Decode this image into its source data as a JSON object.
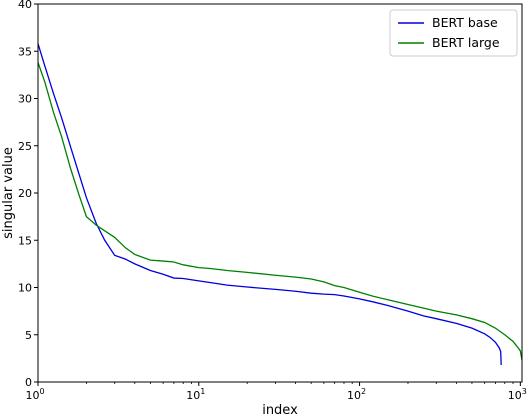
{
  "chart_data": {
    "type": "line",
    "title": "",
    "xlabel": "index",
    "ylabel": "singular value",
    "xscale": "log",
    "xlim": [
      1,
      1024
    ],
    "ylim": [
      0,
      40
    ],
    "xticks": [
      {
        "value": 1,
        "base": "10",
        "exp": "0"
      },
      {
        "value": 10,
        "base": "10",
        "exp": "1"
      },
      {
        "value": 100,
        "base": "10",
        "exp": "2"
      },
      {
        "value": 1000,
        "base": "10",
        "exp": "3"
      }
    ],
    "yticks": [
      "0",
      "5",
      "10",
      "15",
      "20",
      "25",
      "30",
      "35",
      "40"
    ],
    "grid": false,
    "legend": {
      "position": "top-right"
    },
    "series": [
      {
        "name": "BERT base",
        "color": "#0000dd",
        "points": [
          [
            1,
            35.8
          ],
          [
            1.1,
            33.5
          ],
          [
            1.25,
            30.5
          ],
          [
            1.4,
            28
          ],
          [
            1.6,
            24.8
          ],
          [
            1.8,
            22
          ],
          [
            2,
            19.5
          ],
          [
            2.3,
            16.8
          ],
          [
            2.6,
            15
          ],
          [
            3,
            13.4
          ],
          [
            3.5,
            13
          ],
          [
            4,
            12.5
          ],
          [
            5,
            11.8
          ],
          [
            6,
            11.4
          ],
          [
            7,
            11
          ],
          [
            8,
            10.95
          ],
          [
            10,
            10.7
          ],
          [
            12,
            10.5
          ],
          [
            15,
            10.25
          ],
          [
            20,
            10.05
          ],
          [
            30,
            9.8
          ],
          [
            40,
            9.6
          ],
          [
            50,
            9.4
          ],
          [
            60,
            9.3
          ],
          [
            70,
            9.25
          ],
          [
            80,
            9.1
          ],
          [
            100,
            8.8
          ],
          [
            120,
            8.5
          ],
          [
            150,
            8.1
          ],
          [
            200,
            7.5
          ],
          [
            250,
            7
          ],
          [
            300,
            6.7
          ],
          [
            400,
            6.2
          ],
          [
            500,
            5.7
          ],
          [
            600,
            5.1
          ],
          [
            650,
            4.7
          ],
          [
            700,
            4.2
          ],
          [
            740,
            3.6
          ],
          [
            755,
            3.2
          ],
          [
            760,
            1.8
          ]
        ]
      },
      {
        "name": "BERT large",
        "color": "#008000",
        "points": [
          [
            1,
            33.8
          ],
          [
            1.1,
            31.8
          ],
          [
            1.25,
            28.5
          ],
          [
            1.4,
            26
          ],
          [
            1.6,
            22.5
          ],
          [
            1.8,
            19.8
          ],
          [
            2,
            17.5
          ],
          [
            2.3,
            16.6
          ],
          [
            2.6,
            16
          ],
          [
            3,
            15.3
          ],
          [
            3.5,
            14.2
          ],
          [
            4,
            13.5
          ],
          [
            5,
            12.9
          ],
          [
            6,
            12.8
          ],
          [
            7,
            12.7
          ],
          [
            8,
            12.4
          ],
          [
            10,
            12.1
          ],
          [
            12,
            12
          ],
          [
            15,
            11.8
          ],
          [
            20,
            11.6
          ],
          [
            30,
            11.3
          ],
          [
            40,
            11.1
          ],
          [
            50,
            10.9
          ],
          [
            60,
            10.6
          ],
          [
            70,
            10.2
          ],
          [
            80,
            10
          ],
          [
            100,
            9.5
          ],
          [
            120,
            9.1
          ],
          [
            150,
            8.7
          ],
          [
            200,
            8.2
          ],
          [
            300,
            7.5
          ],
          [
            400,
            7.1
          ],
          [
            500,
            6.7
          ],
          [
            600,
            6.3
          ],
          [
            700,
            5.7
          ],
          [
            800,
            5
          ],
          [
            900,
            4.3
          ],
          [
            960,
            3.7
          ],
          [
            1000,
            3.3
          ],
          [
            1024,
            2.3
          ]
        ]
      }
    ]
  }
}
